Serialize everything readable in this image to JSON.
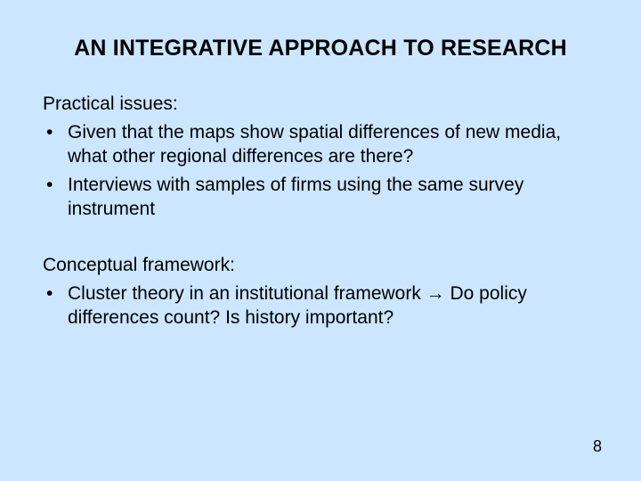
{
  "background_color": "#cce6ff",
  "text_color": "#000000",
  "title": "AN INTEGRATIVE APPROACH TO RESEARCH",
  "title_fontsize": 25,
  "body_fontsize": 21,
  "sections": [
    {
      "heading": "Practical issues:",
      "bullets": [
        "Given that the maps show spatial differences of new media, what other regional differences are there?",
        "Interviews with samples of firms using the same survey instrument"
      ]
    },
    {
      "heading": "Conceptual framework:",
      "bullets": [
        "Cluster theory in an institutional framework → Do policy differences count?  Is history important?"
      ]
    }
  ],
  "page_number": "8"
}
